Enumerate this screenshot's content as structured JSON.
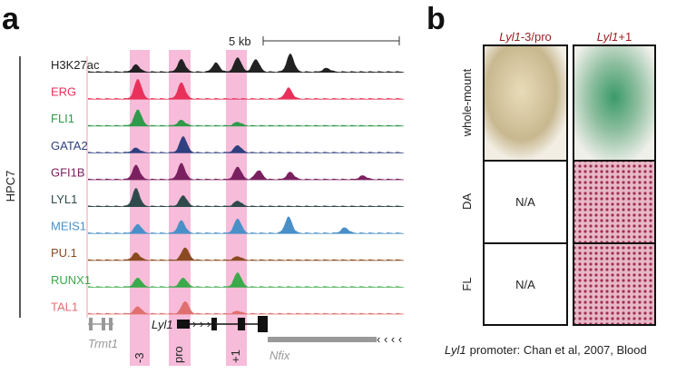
{
  "panel_a": {
    "letter": "a",
    "scale_label": "5 kb",
    "cell_line": "HPC7",
    "tracks": [
      {
        "name": "H3K27ac",
        "color": "#222222"
      },
      {
        "name": "ERG",
        "color": "#e8305a"
      },
      {
        "name": "FLI1",
        "color": "#2e9a4a"
      },
      {
        "name": "GATA2",
        "color": "#2f3f7f"
      },
      {
        "name": "GFI1B",
        "color": "#7a2060"
      },
      {
        "name": "LYL1",
        "color": "#2f4a4a"
      },
      {
        "name": "MEIS1",
        "color": "#4a90c8"
      },
      {
        "name": "PU.1",
        "color": "#8a4a20"
      },
      {
        "name": "RUNX1",
        "color": "#3aaa4a"
      },
      {
        "name": "TAL1",
        "color": "#e07070"
      }
    ],
    "regions": [
      "-3",
      "pro",
      "+1"
    ],
    "genes": [
      "Lyl1",
      "Trmt1",
      "Nfix"
    ]
  },
  "panel_b": {
    "letter": "b",
    "columns": [
      {
        "gene": "Lyl1",
        "suffix": "-3/pro"
      },
      {
        "gene": "Lyl1",
        "suffix": "+1"
      }
    ],
    "rows": [
      "whole-mount",
      "DA",
      "FL"
    ],
    "na": [
      "N/A",
      "N/A"
    ],
    "caption": {
      "gene": "Lyl1",
      "text": "promoter: Chan et al, 2007, Blood"
    }
  }
}
